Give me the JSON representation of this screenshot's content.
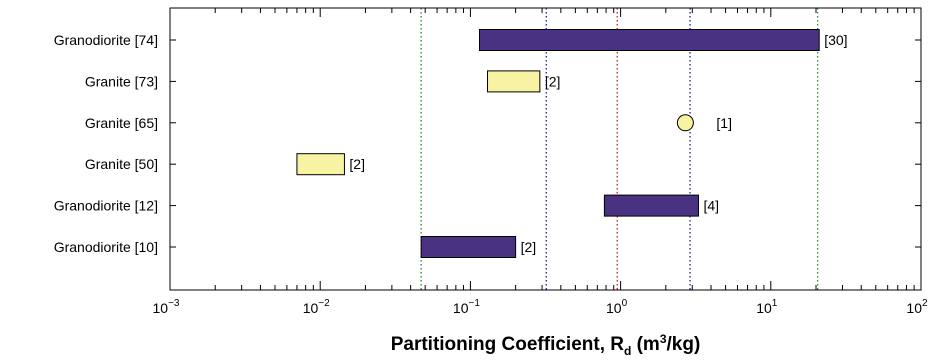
{
  "chart_data": {
    "type": "range-bar",
    "xscale": "log",
    "xlim": [
      0.001,
      100
    ],
    "x_ticks": [
      {
        "base": "10",
        "exp": "−3"
      },
      {
        "base": "10",
        "exp": "−2"
      },
      {
        "base": "10",
        "exp": "−1"
      },
      {
        "base": "10",
        "exp": "0"
      },
      {
        "base": "10",
        "exp": "1"
      },
      {
        "base": "10",
        "exp": "2"
      }
    ],
    "xlabel": {
      "prefix": "Partitioning Coefficient, R",
      "sub": "d",
      "mid": " (m",
      "sup": "3",
      "suffix": "/kg)"
    },
    "categories": [
      "Granodiorite [74]",
      "Granite [73]",
      "Granite [65]",
      "Granite [50]",
      "Granodiorite [12]",
      "Granodiorite [10]"
    ],
    "ranges": [
      {
        "category": "Granodiorite [74]",
        "min": 0.115,
        "max": 21,
        "count_label": "[30]",
        "color": "#4a3283",
        "marker": "bar"
      },
      {
        "category": "Granite [73]",
        "min": 0.13,
        "max": 0.29,
        "count_label": "[2]",
        "color": "#f7f3a3",
        "marker": "bar"
      },
      {
        "category": "Granite [65]",
        "min": 2.7,
        "max": 2.7,
        "count_label": "[1]",
        "color": "#f7f3a3",
        "marker": "circle"
      },
      {
        "category": "Granite [50]",
        "min": 0.007,
        "max": 0.0145,
        "count_label": "[2]",
        "color": "#f7f3a3",
        "marker": "bar"
      },
      {
        "category": "Granodiorite [12]",
        "min": 0.78,
        "max": 3.3,
        "count_label": "[4]",
        "color": "#4a3283",
        "marker": "bar"
      },
      {
        "category": "Granodiorite [10]",
        "min": 0.047,
        "max": 0.2,
        "count_label": "[2]",
        "color": "#4a3283",
        "marker": "bar"
      }
    ],
    "reference_lines": [
      {
        "x": 0.047,
        "color": "#2e8b2e"
      },
      {
        "x": 0.32,
        "color": "#1a1aa0"
      },
      {
        "x": 0.95,
        "color": "#d21f1f"
      },
      {
        "x": 2.9,
        "color": "#1a1aa0"
      },
      {
        "x": 20.5,
        "color": "#2e8b2e"
      }
    ],
    "grid": false,
    "legend": "none"
  }
}
